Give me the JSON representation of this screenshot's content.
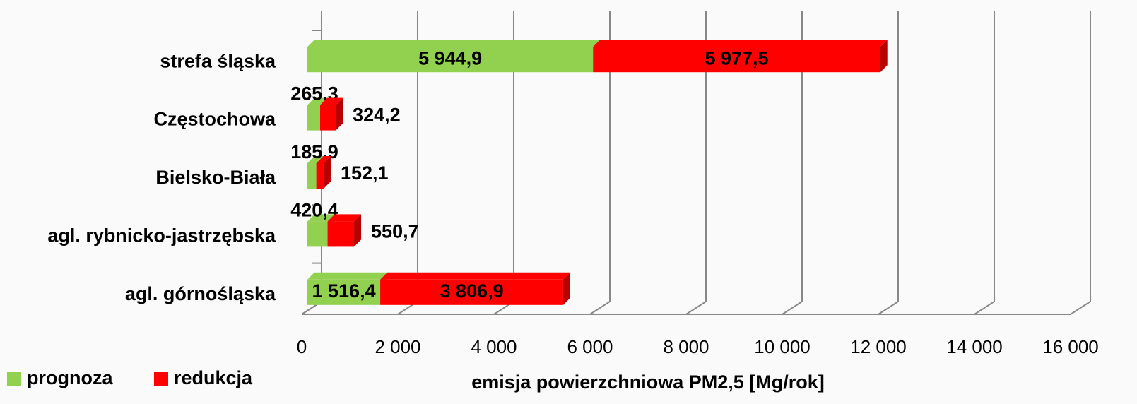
{
  "chart_data": {
    "type": "bar",
    "orientation": "horizontal",
    "stacked": true,
    "x_label": "emisja powierzchniowa PM2,5 [Mg/rok]",
    "categories": [
      "strefa śląska",
      "Częstochowa",
      "Bielsko-Biała",
      "agl. rybnicko-jastrzębska",
      "agl. górnośląska"
    ],
    "series": [
      {
        "name": "prognoza",
        "color": "#92d050",
        "values": [
          5944.9,
          265.3,
          185.9,
          420.4,
          1516.4
        ],
        "value_labels": [
          "5 944,9",
          "265,3",
          "185,9",
          "420,4",
          "1 516,4"
        ]
      },
      {
        "name": "redukcja",
        "color": "#ff0000",
        "values": [
          5977.5,
          324.2,
          152.1,
          550.7,
          3806.9
        ],
        "value_labels": [
          "5 977,5",
          "324,2",
          "152,1",
          "550,7",
          "3 806,9"
        ]
      }
    ],
    "xlim": [
      0,
      16000
    ],
    "xticks": [
      0,
      {
        "value": 2000,
        "label": "2 000"
      },
      {
        "value": 4000,
        "label": "4 000"
      },
      {
        "value": 6000,
        "label": "6 000"
      },
      {
        "value": 8000,
        "label": "8 000"
      },
      {
        "value": 10000,
        "label": "10 000"
      },
      {
        "value": 12000,
        "label": "12 000"
      },
      {
        "value": 14000,
        "label": "14 000"
      },
      {
        "value": 16000,
        "label": "16 000"
      }
    ],
    "grid": true,
    "legend": "bottom-left"
  }
}
